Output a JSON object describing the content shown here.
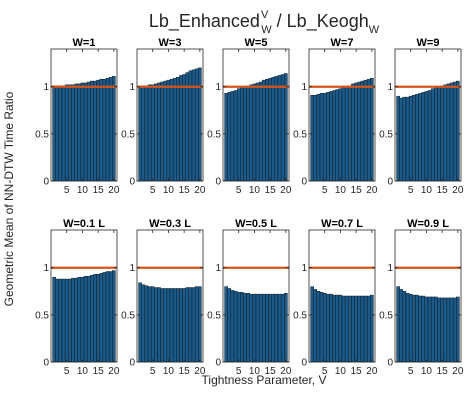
{
  "figure": {
    "title_main": "Lb_Enhanced",
    "title_sup": "V",
    "title_sub": "W",
    "title_sep": " / Lb_Keogh",
    "title_sub2": "W",
    "xlabel": "Tightness Parameter, V",
    "ylabel": "Geometric Mean of NN-DTW Time Ratio"
  },
  "colors": {
    "bar_fill": "#1a5b8c",
    "bar_edge": "#0a0a0a",
    "reference_line": "#d95319",
    "axis": "#262626"
  },
  "chart_data": [
    {
      "type": "bar",
      "title": "W=1",
      "x": [
        1,
        2,
        3,
        4,
        5,
        6,
        7,
        8,
        9,
        10,
        11,
        12,
        13,
        14,
        15,
        16,
        17,
        18,
        19,
        20
      ],
      "values": [
        1.01,
        1.01,
        1.01,
        1.01,
        1.02,
        1.02,
        1.02,
        1.03,
        1.03,
        1.04,
        1.04,
        1.05,
        1.06,
        1.06,
        1.07,
        1.08,
        1.08,
        1.09,
        1.1,
        1.11
      ],
      "reference_line": 1,
      "xticks": [
        5,
        10,
        15,
        20
      ],
      "yticks": [
        0,
        0.5,
        1
      ],
      "ytick_labels": [
        "0",
        "0.5",
        "1"
      ],
      "xlim": [
        0,
        21
      ],
      "ylim": [
        0,
        1.4
      ]
    },
    {
      "type": "bar",
      "title": "W=3",
      "x": [
        1,
        2,
        3,
        4,
        5,
        6,
        7,
        8,
        9,
        10,
        11,
        12,
        13,
        14,
        15,
        16,
        17,
        18,
        19,
        20
      ],
      "values": [
        1.0,
        1.01,
        1.01,
        1.02,
        1.02,
        1.03,
        1.04,
        1.05,
        1.06,
        1.07,
        1.08,
        1.09,
        1.1,
        1.12,
        1.13,
        1.15,
        1.17,
        1.18,
        1.19,
        1.2
      ],
      "reference_line": 1,
      "xticks": [
        5,
        10,
        15,
        20
      ],
      "yticks": [
        0,
        0.5,
        1
      ],
      "ytick_labels": [
        "0",
        "0.5",
        "1"
      ],
      "xlim": [
        0,
        21
      ],
      "ylim": [
        0,
        1.4
      ]
    },
    {
      "type": "bar",
      "title": "W=5",
      "x": [
        1,
        2,
        3,
        4,
        5,
        6,
        7,
        8,
        9,
        10,
        11,
        12,
        13,
        14,
        15,
        16,
        17,
        18,
        19,
        20
      ],
      "values": [
        0.93,
        0.94,
        0.95,
        0.96,
        0.98,
        0.99,
        1.0,
        1.01,
        1.02,
        1.03,
        1.04,
        1.05,
        1.07,
        1.08,
        1.09,
        1.1,
        1.11,
        1.12,
        1.13,
        1.14
      ],
      "reference_line": 1,
      "xticks": [
        5,
        10,
        15,
        20
      ],
      "yticks": [
        0,
        0.5,
        1
      ],
      "ytick_labels": [
        "0",
        "0.5",
        "1"
      ],
      "xlim": [
        0,
        21
      ],
      "ylim": [
        0,
        1.4
      ]
    },
    {
      "type": "bar",
      "title": "W=7",
      "x": [
        1,
        2,
        3,
        4,
        5,
        6,
        7,
        8,
        9,
        10,
        11,
        12,
        13,
        14,
        15,
        16,
        17,
        18,
        19,
        20
      ],
      "values": [
        0.91,
        0.91,
        0.92,
        0.93,
        0.93,
        0.94,
        0.95,
        0.96,
        0.97,
        0.98,
        0.99,
        1.0,
        1.01,
        1.03,
        1.04,
        1.05,
        1.06,
        1.07,
        1.08,
        1.09
      ],
      "reference_line": 1,
      "xticks": [
        5,
        10,
        15,
        20
      ],
      "yticks": [
        0,
        0.5,
        1
      ],
      "ytick_labels": [
        "0",
        "0.5",
        "1"
      ],
      "xlim": [
        0,
        21
      ],
      "ylim": [
        0,
        1.4
      ]
    },
    {
      "type": "bar",
      "title": "W=9",
      "x": [
        1,
        2,
        3,
        4,
        5,
        6,
        7,
        8,
        9,
        10,
        11,
        12,
        13,
        14,
        15,
        16,
        17,
        18,
        19,
        20
      ],
      "values": [
        0.9,
        0.88,
        0.89,
        0.89,
        0.9,
        0.91,
        0.92,
        0.93,
        0.94,
        0.95,
        0.96,
        0.98,
        0.99,
        1.0,
        1.01,
        1.02,
        1.03,
        1.04,
        1.05,
        1.06
      ],
      "reference_line": 1,
      "xticks": [
        5,
        10,
        15,
        20
      ],
      "yticks": [
        0,
        0.5,
        1
      ],
      "ytick_labels": [
        "0",
        "0.5",
        "1"
      ],
      "xlim": [
        0,
        21
      ],
      "ylim": [
        0,
        1.4
      ]
    },
    {
      "type": "bar",
      "title": "W=0.1 L",
      "x": [
        1,
        2,
        3,
        4,
        5,
        6,
        7,
        8,
        9,
        10,
        11,
        12,
        13,
        14,
        15,
        16,
        17,
        18,
        19,
        20
      ],
      "values": [
        0.9,
        0.88,
        0.88,
        0.88,
        0.88,
        0.88,
        0.89,
        0.89,
        0.9,
        0.9,
        0.91,
        0.91,
        0.92,
        0.93,
        0.93,
        0.94,
        0.95,
        0.96,
        0.96,
        0.97
      ],
      "reference_line": 1,
      "xticks": [
        5,
        10,
        15,
        20
      ],
      "yticks": [
        0,
        0.5,
        1
      ],
      "ytick_labels": [
        "0",
        "0.5",
        "1"
      ],
      "xlim": [
        0,
        21
      ],
      "ylim": [
        0,
        1.4
      ]
    },
    {
      "type": "bar",
      "title": "W=0.3 L",
      "x": [
        1,
        2,
        3,
        4,
        5,
        6,
        7,
        8,
        9,
        10,
        11,
        12,
        13,
        14,
        15,
        16,
        17,
        18,
        19,
        20
      ],
      "values": [
        0.84,
        0.82,
        0.81,
        0.8,
        0.8,
        0.79,
        0.79,
        0.78,
        0.78,
        0.78,
        0.78,
        0.78,
        0.78,
        0.78,
        0.78,
        0.79,
        0.79,
        0.79,
        0.8,
        0.8
      ],
      "reference_line": 1,
      "xticks": [
        5,
        10,
        15,
        20
      ],
      "yticks": [
        0,
        0.5,
        1
      ],
      "ytick_labels": [
        "0",
        "0.5",
        "1"
      ],
      "xlim": [
        0,
        21
      ],
      "ylim": [
        0,
        1.4
      ]
    },
    {
      "type": "bar",
      "title": "W=0.5 L",
      "x": [
        1,
        2,
        3,
        4,
        5,
        6,
        7,
        8,
        9,
        10,
        11,
        12,
        13,
        14,
        15,
        16,
        17,
        18,
        19,
        20
      ],
      "values": [
        0.8,
        0.78,
        0.76,
        0.75,
        0.74,
        0.74,
        0.73,
        0.73,
        0.72,
        0.72,
        0.72,
        0.72,
        0.72,
        0.72,
        0.72,
        0.72,
        0.72,
        0.72,
        0.72,
        0.73
      ],
      "reference_line": 1,
      "xticks": [
        5,
        10,
        15,
        20
      ],
      "yticks": [
        0,
        0.5,
        1
      ],
      "ytick_labels": [
        "0",
        "0.5",
        "1"
      ],
      "xlim": [
        0,
        21
      ],
      "ylim": [
        0,
        1.4
      ]
    },
    {
      "type": "bar",
      "title": "W=0.7 L",
      "x": [
        1,
        2,
        3,
        4,
        5,
        6,
        7,
        8,
        9,
        10,
        11,
        12,
        13,
        14,
        15,
        16,
        17,
        18,
        19,
        20
      ],
      "values": [
        0.8,
        0.77,
        0.75,
        0.74,
        0.73,
        0.72,
        0.72,
        0.71,
        0.71,
        0.71,
        0.7,
        0.7,
        0.7,
        0.7,
        0.7,
        0.7,
        0.7,
        0.7,
        0.7,
        0.71
      ],
      "reference_line": 1,
      "xticks": [
        5,
        10,
        15,
        20
      ],
      "yticks": [
        0,
        0.5,
        1
      ],
      "ytick_labels": [
        "0",
        "0.5",
        "1"
      ],
      "xlim": [
        0,
        21
      ],
      "ylim": [
        0,
        1.4
      ]
    },
    {
      "type": "bar",
      "title": "W=0.9 L",
      "x": [
        1,
        2,
        3,
        4,
        5,
        6,
        7,
        8,
        9,
        10,
        11,
        12,
        13,
        14,
        15,
        16,
        17,
        18,
        19,
        20
      ],
      "values": [
        0.8,
        0.77,
        0.75,
        0.73,
        0.72,
        0.71,
        0.71,
        0.7,
        0.7,
        0.69,
        0.69,
        0.69,
        0.69,
        0.68,
        0.68,
        0.68,
        0.68,
        0.68,
        0.68,
        0.69
      ],
      "reference_line": 1,
      "xticks": [
        5,
        10,
        15,
        20
      ],
      "yticks": [
        0,
        0.5,
        1
      ],
      "ytick_labels": [
        "0",
        "0.5",
        "1"
      ],
      "xlim": [
        0,
        21
      ],
      "ylim": [
        0,
        1.4
      ]
    }
  ]
}
